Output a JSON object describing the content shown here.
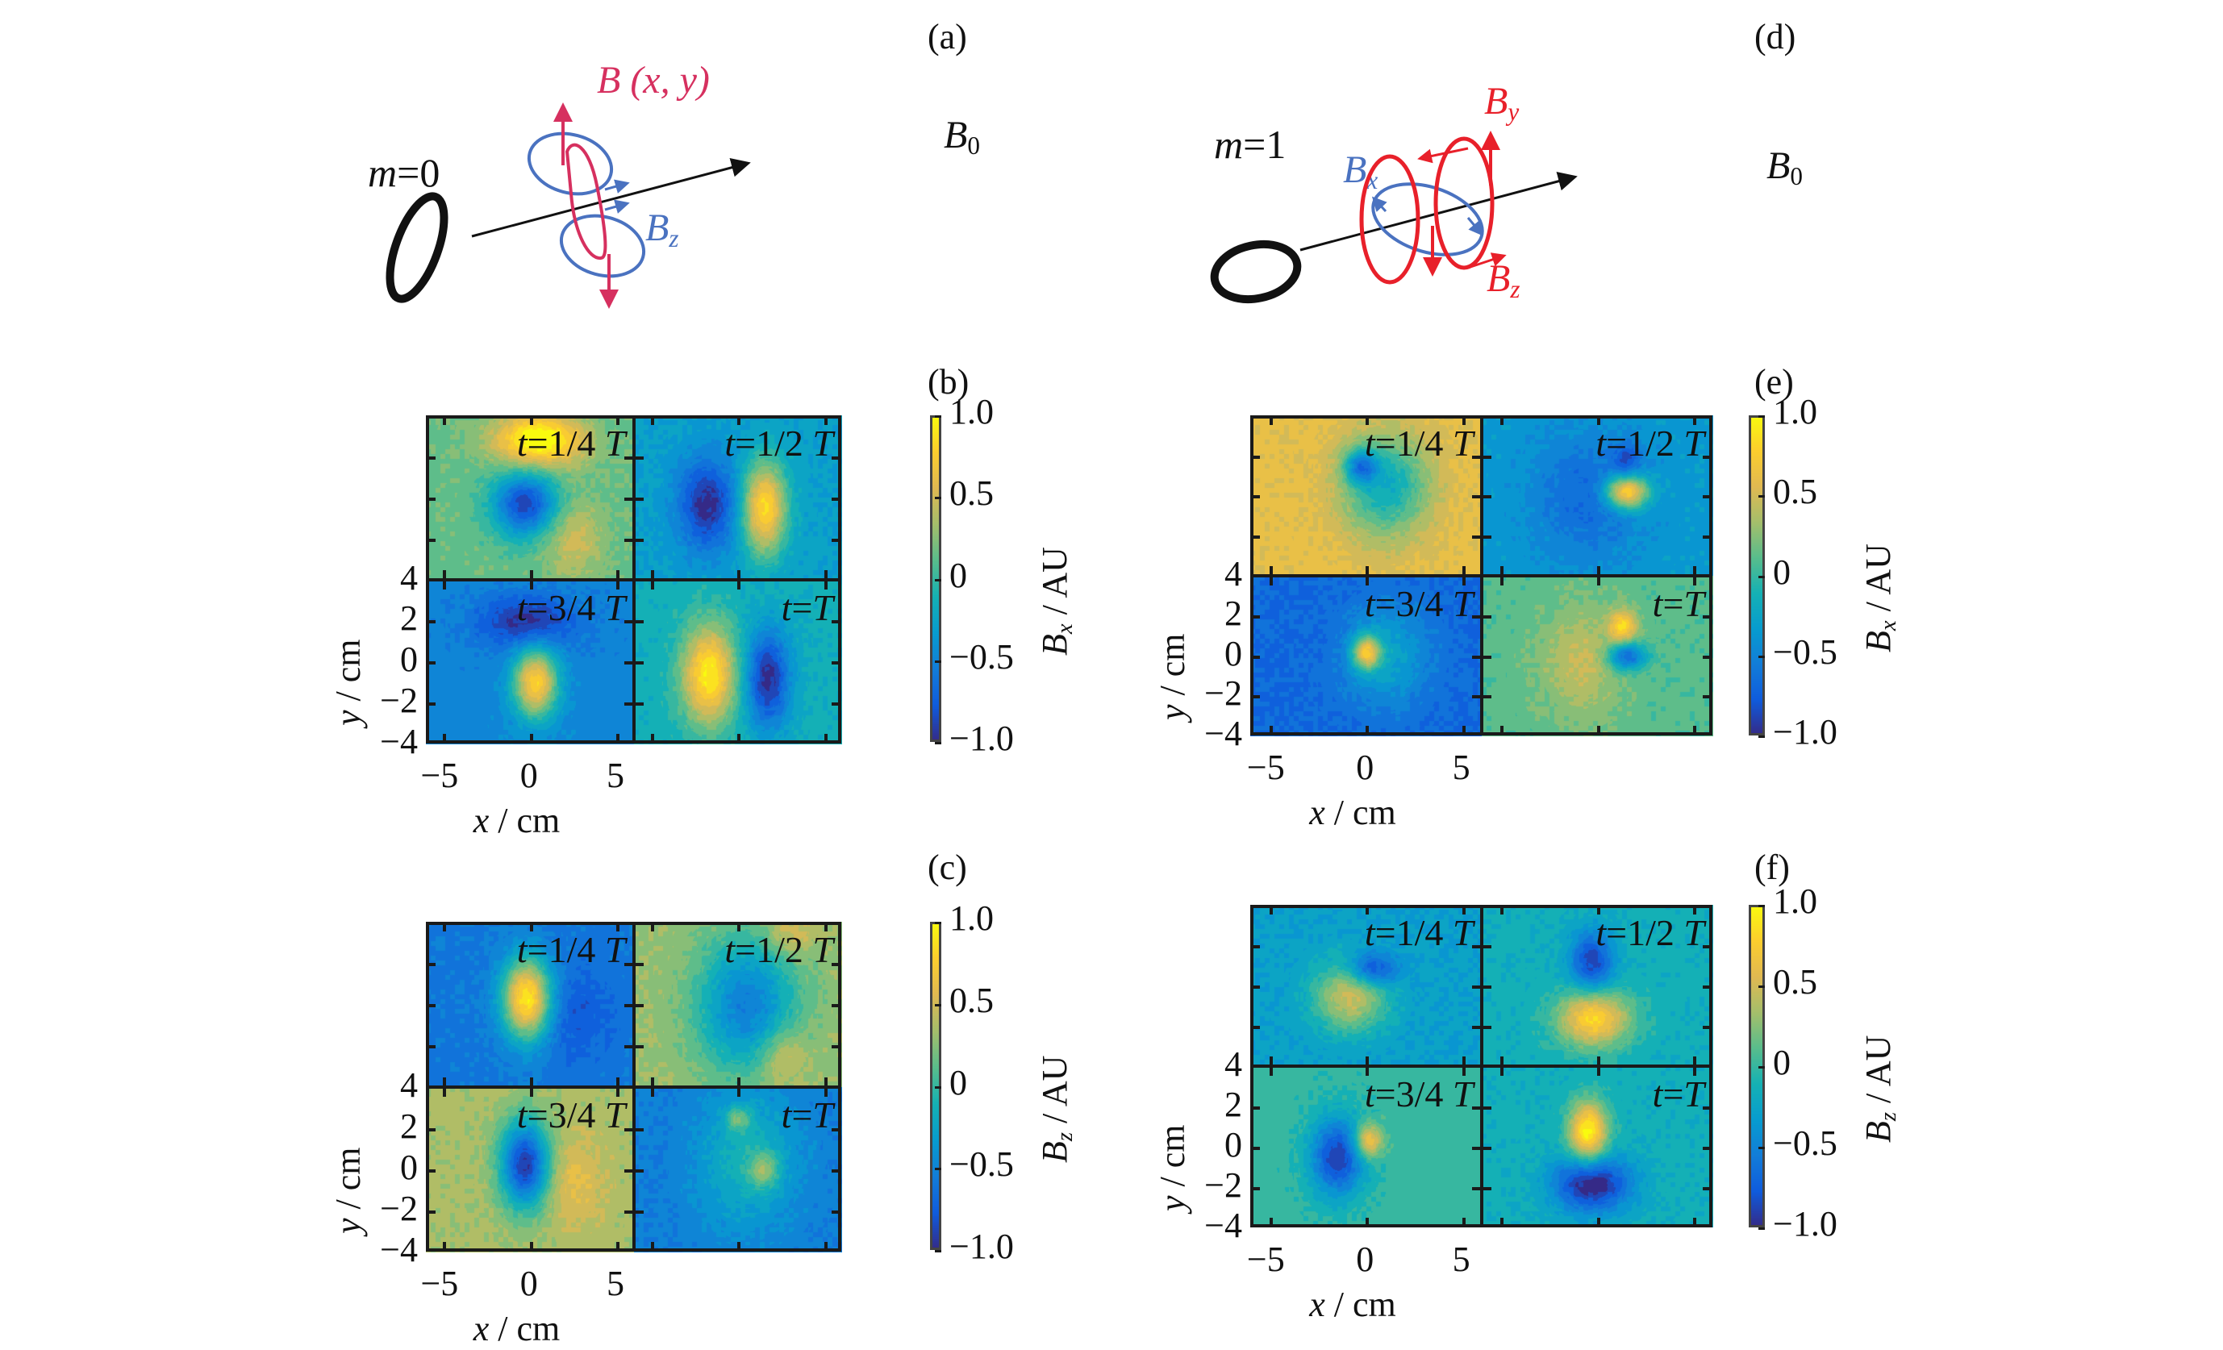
{
  "figure": {
    "panel_labels": {
      "a": "(a)",
      "b": "(b)",
      "c": "(c)",
      "d": "(d)",
      "e": "(e)",
      "f": "(f)"
    },
    "diagrams": {
      "a": {
        "mode_label": "m = 0",
        "mode_var": "m",
        "mode_value": "0",
        "field_label": "B (x, y)",
        "axial_label": "B",
        "axial_sub": "0",
        "comp_label": "B",
        "comp_sub": "z",
        "colors": {
          "field": "#d6305f",
          "component": "#4a72c0",
          "axis": "#111111"
        }
      },
      "d": {
        "mode_label": "m = 1",
        "mode_var": "m",
        "mode_value": "1",
        "comp_x": "B",
        "comp_x_sub": "x",
        "comp_y": "B",
        "comp_y_sub": "y",
        "comp_z": "B",
        "comp_z_sub": "z",
        "axial_label": "B",
        "axial_sub": "0",
        "colors": {
          "field": "#e8202a",
          "component": "#4a72c0",
          "axis": "#111111"
        }
      }
    }
  },
  "chart_data": [
    {
      "id": "b",
      "type": "heatmap",
      "component": "Bx",
      "mode": "m=0",
      "colorbar_label": "B_x / AU",
      "colorbar_var": "B",
      "colorbar_sub": "x",
      "colorbar_unit": " / AU",
      "clim": [
        -1.0,
        1.0
      ],
      "colorbar_ticks": [
        "1.0",
        "0.5",
        "0",
        "−0.5",
        "−1.0"
      ],
      "xlabel": "x / cm",
      "ylabel": "y / cm",
      "xlim": [
        -6,
        6
      ],
      "ylim": [
        -4,
        4
      ],
      "xticks": [
        "−5",
        "0",
        "5"
      ],
      "yticks": [
        "4",
        "2",
        "0",
        "−2",
        "−4"
      ],
      "subplots": [
        {
          "label": "t = 1/4 T",
          "t_frac": "1/4",
          "background": 0.15,
          "blobs": [
            {
              "x": 0.5,
              "y": 2.8,
              "a": 0.95,
              "sx": 1.8,
              "sy": 0.9
            },
            {
              "x": -0.3,
              "y": -0.3,
              "a": -1.05,
              "sx": 1.3,
              "sy": 1.1
            },
            {
              "x": 2.5,
              "y": -2.0,
              "a": 0.35,
              "sx": 1.2,
              "sy": 1.3
            }
          ]
        },
        {
          "label": "t = 1/2 T",
          "t_frac": "1/2",
          "background": -0.3,
          "blobs": [
            {
              "x": -1.8,
              "y": -0.3,
              "a": -0.7,
              "sx": 1.2,
              "sy": 1.6
            },
            {
              "x": 1.5,
              "y": -0.5,
              "a": 1.15,
              "sx": 0.9,
              "sy": 1.6
            }
          ]
        },
        {
          "label": "t = 3/4 T",
          "t_frac": "3/4",
          "background": -0.5,
          "blobs": [
            {
              "x": -0.2,
              "y": 2.0,
              "a": -0.5,
              "sx": 2.0,
              "sy": 0.9
            },
            {
              "x": 0.3,
              "y": -1.0,
              "a": 1.3,
              "sx": 0.9,
              "sy": 1.2
            }
          ]
        },
        {
          "label": "t = T",
          "t_frac": "1",
          "background": -0.15,
          "blobs": [
            {
              "x": -1.7,
              "y": -0.6,
              "a": 1.1,
              "sx": 1.1,
              "sy": 1.7
            },
            {
              "x": 1.7,
              "y": -0.8,
              "a": -0.85,
              "sx": 0.9,
              "sy": 1.7
            }
          ]
        }
      ]
    },
    {
      "id": "c",
      "type": "heatmap",
      "component": "Bz",
      "mode": "m=0",
      "colorbar_label": "B_z / AU",
      "colorbar_var": "B",
      "colorbar_sub": "z",
      "colorbar_unit": " / AU",
      "clim": [
        -1.0,
        1.0
      ],
      "colorbar_ticks": [
        "1.0",
        "0.5",
        "0",
        "−0.5",
        "−1.0"
      ],
      "xlabel": "x / cm",
      "ylabel": "y / cm",
      "xlim": [
        -6,
        6
      ],
      "ylim": [
        -4,
        4
      ],
      "xticks": [
        "−5",
        "0",
        "5"
      ],
      "yticks": [
        "4",
        "2",
        "0",
        "−2",
        "−4"
      ],
      "subplots": [
        {
          "label": "t = 1/4 T",
          "t_frac": "1/4",
          "background": -0.6,
          "blobs": [
            {
              "x": -0.2,
              "y": 0.3,
              "a": 1.55,
              "sx": 1.0,
              "sy": 1.4
            },
            {
              "x": 2.5,
              "y": -0.5,
              "a": -0.2,
              "sx": 1.5,
              "sy": 1.5
            }
          ]
        },
        {
          "label": "t = 1/2 T",
          "t_frac": "1/2",
          "background": 0.3,
          "blobs": [
            {
              "x": 0.5,
              "y": 0.0,
              "a": -0.85,
              "sx": 2.0,
              "sy": 2.3
            },
            {
              "x": 2.5,
              "y": -2.5,
              "a": 0.35,
              "sx": 1.0,
              "sy": 1.0
            },
            {
              "x": 3.0,
              "y": 3.5,
              "a": 0.3,
              "sx": 1.0,
              "sy": 0.8
            }
          ]
        },
        {
          "label": "t = 3/4 T",
          "t_frac": "3/4",
          "background": 0.35,
          "blobs": [
            {
              "x": -0.3,
              "y": 0.3,
              "a": -1.3,
              "sx": 1.0,
              "sy": 1.5
            },
            {
              "x": 2.5,
              "y": -0.5,
              "a": 0.25,
              "sx": 1.2,
              "sy": 1.5
            }
          ]
        },
        {
          "label": "t = T",
          "t_frac": "1",
          "background": -0.55,
          "blobs": [
            {
              "x": 0.5,
              "y": 0.5,
              "a": 0.45,
              "sx": 2.0,
              "sy": 2.3
            },
            {
              "x": 1.5,
              "y": 0.0,
              "a": 0.5,
              "sx": 0.6,
              "sy": 0.6
            },
            {
              "x": 0.0,
              "y": 2.5,
              "a": 0.5,
              "sx": 0.5,
              "sy": 0.4
            }
          ]
        }
      ]
    },
    {
      "id": "e",
      "type": "heatmap",
      "component": "Bx",
      "mode": "m=1",
      "colorbar_label": "B_x / AU",
      "colorbar_var": "B",
      "colorbar_sub": "x",
      "colorbar_unit": " / AU",
      "clim": [
        -1.0,
        1.0
      ],
      "colorbar_ticks": [
        "1.0",
        "0.5",
        "0",
        "−0.5",
        "−1.0"
      ],
      "xlabel": "x / cm",
      "ylabel": "y / cm",
      "xlim": [
        -6,
        6
      ],
      "ylim": [
        -4,
        4
      ],
      "xticks": [
        "−5",
        "0",
        "5"
      ],
      "yticks": [
        "4",
        "2",
        "0",
        "−2",
        "−4"
      ],
      "subplots": [
        {
          "label": "t = 1/4 T",
          "t_frac": "1/4",
          "background": 0.6,
          "blobs": [
            {
              "x": 1.0,
              "y": 0.5,
              "a": -0.8,
              "sx": 1.6,
              "sy": 1.8
            },
            {
              "x": -0.3,
              "y": 1.5,
              "a": -0.8,
              "sx": 0.6,
              "sy": 0.6
            }
          ]
        },
        {
          "label": "t = 1/2 T",
          "t_frac": "1/2",
          "background": -0.35,
          "blobs": [
            {
              "x": -0.5,
              "y": 0.0,
              "a": -0.35,
              "sx": 2.0,
              "sy": 2.2
            },
            {
              "x": 1.5,
              "y": 0.2,
              "a": 1.3,
              "sx": 0.8,
              "sy": 0.6
            },
            {
              "x": 1.5,
              "y": 1.8,
              "a": -0.4,
              "sx": 0.5,
              "sy": 0.6
            }
          ]
        },
        {
          "label": "t = 3/4 T",
          "t_frac": "3/4",
          "background": -0.7,
          "blobs": [
            {
              "x": 1.0,
              "y": 0.0,
              "a": 0.45,
              "sx": 1.6,
              "sy": 1.8
            },
            {
              "x": 0.0,
              "y": 0.2,
              "a": 1.1,
              "sx": 0.5,
              "sy": 0.6
            }
          ]
        },
        {
          "label": "t = T",
          "t_frac": "1",
          "background": 0.1,
          "blobs": [
            {
              "x": -0.8,
              "y": -0.3,
              "a": 0.35,
              "sx": 1.6,
              "sy": 2.0
            },
            {
              "x": 1.5,
              "y": 0.0,
              "a": -0.9,
              "sx": 0.7,
              "sy": 0.5
            },
            {
              "x": 1.3,
              "y": 1.5,
              "a": 0.65,
              "sx": 0.5,
              "sy": 0.6
            }
          ]
        }
      ]
    },
    {
      "id": "f",
      "type": "heatmap",
      "component": "Bz",
      "mode": "m=1",
      "colorbar_label": "B_z / AU",
      "colorbar_var": "B",
      "colorbar_sub": "z",
      "colorbar_unit": " / AU",
      "clim": [
        -1.0,
        1.0
      ],
      "colorbar_ticks": [
        "1.0",
        "0.5",
        "0",
        "−0.5",
        "−1.0"
      ],
      "xlabel": "x / cm",
      "ylabel": "y / cm",
      "xlim": [
        -6,
        6
      ],
      "ylim": [
        -4,
        4
      ],
      "xticks": [
        "−5",
        "0",
        "5"
      ],
      "yticks": [
        "4",
        "2",
        "0",
        "−2",
        "−4"
      ],
      "subplots": [
        {
          "label": "t = 1/4 T",
          "t_frac": "1/4",
          "background": -0.3,
          "blobs": [
            {
              "x": -0.8,
              "y": -0.5,
              "a": 0.8,
              "sx": 1.3,
              "sy": 1.2
            },
            {
              "x": 0.3,
              "y": 0.8,
              "a": -0.7,
              "sx": 0.9,
              "sy": 0.6
            }
          ]
        },
        {
          "label": "t = 1/2 T",
          "t_frac": "1/2",
          "background": -0.15,
          "blobs": [
            {
              "x": -0.3,
              "y": 1.2,
              "a": -0.75,
              "sx": 0.8,
              "sy": 1.1
            },
            {
              "x": -0.2,
              "y": -1.6,
              "a": 1.0,
              "sx": 1.3,
              "sy": 1.0
            }
          ]
        },
        {
          "label": "t = 3/4 T",
          "t_frac": "3/4",
          "background": 0.0,
          "blobs": [
            {
              "x": -1.5,
              "y": -0.5,
              "a": -0.9,
              "sx": 1.0,
              "sy": 1.4
            },
            {
              "x": 0.1,
              "y": 0.3,
              "a": 0.8,
              "sx": 0.5,
              "sy": 0.6
            }
          ]
        },
        {
          "label": "t = T",
          "t_frac": "1",
          "background": -0.15,
          "blobs": [
            {
              "x": -0.5,
              "y": 0.7,
              "a": 1.15,
              "sx": 0.7,
              "sy": 1.1
            },
            {
              "x": -0.3,
              "y": -1.8,
              "a": -0.95,
              "sx": 1.4,
              "sy": 1.0
            }
          ]
        }
      ]
    }
  ]
}
